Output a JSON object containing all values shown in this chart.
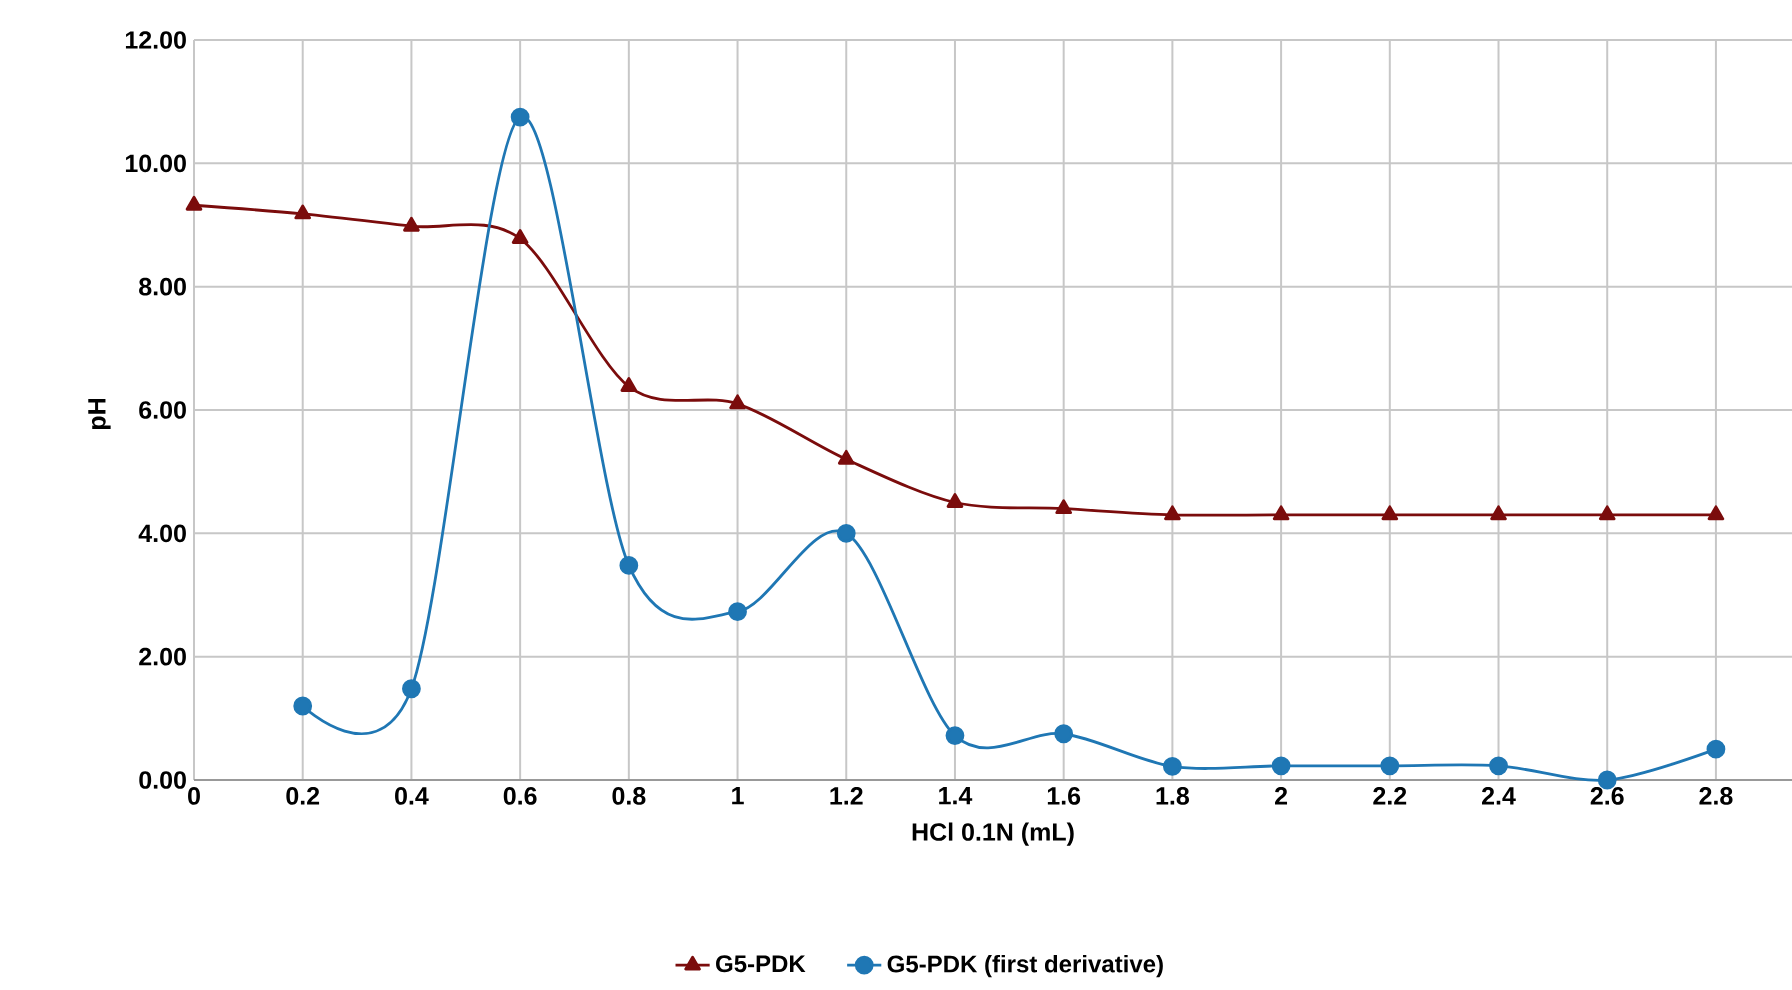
{
  "chart_data": {
    "type": "line",
    "xlabel": "HCl 0.1N (mL)",
    "ylabel": "pH",
    "x": [
      0,
      0.2,
      0.4,
      0.6,
      0.8,
      1,
      1.2,
      1.4,
      1.6,
      1.8,
      2,
      2.2,
      2.4,
      2.6,
      2.8
    ],
    "series": [
      {
        "name": "G5-PDK",
        "color": "#7b0c0c",
        "marker": "triangle",
        "values": [
          9.32,
          9.18,
          8.98,
          8.78,
          6.38,
          6.1,
          5.2,
          4.5,
          4.4,
          4.3,
          4.3,
          4.3,
          4.3,
          4.3,
          4.3
        ]
      },
      {
        "name": "G5-PDK (first derivative)",
        "color": "#1f77b4",
        "marker": "circle",
        "values": [
          null,
          1.2,
          1.48,
          10.75,
          3.48,
          2.73,
          4.0,
          0.72,
          0.75,
          0.22,
          0.23,
          0.23,
          0.23,
          0.0,
          0.5
        ]
      }
    ],
    "xlim": [
      0,
      2.94
    ],
    "xticks": [
      0,
      0.2,
      0.4,
      0.6,
      0.8,
      1,
      1.2,
      1.4,
      1.6,
      1.8,
      2,
      2.2,
      2.4,
      2.6,
      2.8
    ],
    "ylim": [
      0,
      12
    ],
    "yticks": [
      {
        "value": 0,
        "label": "0.00"
      },
      {
        "value": 2,
        "label": "2.00"
      },
      {
        "value": 4,
        "label": "4.00"
      },
      {
        "value": 6,
        "label": "6.00"
      },
      {
        "value": 8,
        "label": "8.00"
      },
      {
        "value": 10,
        "label": "10.00"
      },
      {
        "value": 12,
        "label": "12.00"
      }
    ],
    "grid": true,
    "legend": "bottom",
    "line_style": "solid"
  }
}
